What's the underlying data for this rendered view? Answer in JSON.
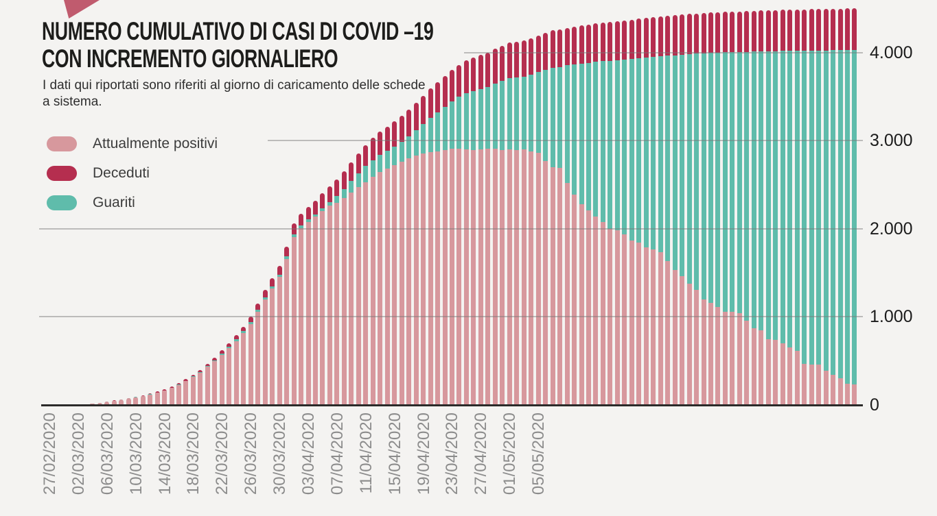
{
  "page": {
    "background": "#f4f3f1"
  },
  "logo": {
    "description": "red arrow fragment",
    "color": "#c05b6e"
  },
  "header": {
    "title_line1": "NUMERO CUMULATIVO DI CASI DI COVID –19",
    "title_line2": "CON INCREMENTO GIORNALIERO",
    "subtitle": "I dati qui riportati sono riferiti al giorno di caricamento delle schede a sistema."
  },
  "legend": [
    {
      "label": "Attualmente positivi",
      "color": "#d7989d"
    },
    {
      "label": "Deceduti",
      "color": "#b52e4f"
    },
    {
      "label": "Guariti",
      "color": "#5fbcab"
    }
  ],
  "chart_data": {
    "type": "bar",
    "stacked": true,
    "title": "NUMERO CUMULATIVO DI CASI DI COVID –19 CON INCREMENTO GIORNALIERO",
    "xlabel": "",
    "ylabel": "",
    "ylim": [
      0,
      4600
    ],
    "grid": true,
    "legend_position": "top-left",
    "bars_are_daily": true,
    "x_tick_every": 4,
    "x_tick_labels": [
      "27/02/2020",
      "02/03/2020",
      "06/03/2020",
      "10/03/2020",
      "14/03/2020",
      "18/03/2020",
      "22/03/2020",
      "26/03/2020",
      "30/03/2020",
      "03/04/2020",
      "07/04/2020",
      "11/04/2020",
      "15/04/2020",
      "19/04/2020",
      "23/04/2020",
      "27/04/2020",
      "01/05/2020",
      "05/05/2020"
    ],
    "y_ticks": [
      {
        "label": "4.000",
        "value": 4000
      },
      {
        "label": "3.000",
        "value": 3000
      },
      {
        "label": "2.000",
        "value": 2000
      },
      {
        "label": "1.000",
        "value": 1000
      },
      {
        "label": "0",
        "value": 0
      }
    ],
    "stack_order_bottom_to_top": [
      "Attualmente positivi",
      "Guariti",
      "Deceduti"
    ],
    "series": [
      {
        "name": "Attualmente positivi",
        "color": "#d7989d",
        "values": [
          2,
          3,
          4,
          6,
          8,
          10,
          14,
          23,
          37,
          49,
          62,
          75,
          89,
          102,
          120,
          140,
          164,
          191,
          225,
          269,
          318,
          369,
          433,
          497,
          571,
          644,
          725,
          816,
          915,
          1055,
          1200,
          1318,
          1455,
          1660,
          1905,
          2005,
          2075,
          2135,
          2200,
          2265,
          2290,
          2350,
          2410,
          2470,
          2530,
          2590,
          2640,
          2680,
          2720,
          2760,
          2800,
          2830,
          2850,
          2870,
          2880,
          2890,
          2905,
          2910,
          2900,
          2890,
          2900,
          2910,
          2905,
          2895,
          2900,
          2890,
          2900,
          2880,
          2865,
          2765,
          2695,
          2690,
          2520,
          2390,
          2275,
          2210,
          2135,
          2075,
          2000,
          1980,
          1940,
          1865,
          1840,
          1790,
          1765,
          1735,
          1635,
          1535,
          1460,
          1380,
          1305,
          1200,
          1160,
          1115,
          1060,
          1060,
          1045,
          960,
          870,
          845,
          750,
          735,
          700,
          655,
          615,
          470,
          460,
          460,
          385,
          345,
          305,
          240,
          230
        ]
      },
      {
        "name": "Guariti",
        "color": "#5fbcab",
        "values": [
          0,
          0,
          0,
          0,
          0,
          0,
          0,
          1,
          1,
          1,
          1,
          1,
          1,
          2,
          2,
          3,
          3,
          4,
          5,
          6,
          7,
          8,
          10,
          12,
          14,
          16,
          19,
          22,
          26,
          25,
          22,
          26,
          21,
          25,
          29,
          29,
          29,
          29,
          34,
          39,
          84,
          102,
          130,
          155,
          180,
          188,
          196,
          205,
          215,
          225,
          245,
          287,
          340,
          390,
          440,
          492,
          540,
          588,
          640,
          673,
          685,
          700,
          740,
          782,
          810,
          826,
          827,
          868,
          915,
          1036,
          1133,
          1145,
          1333,
          1475,
          1598,
          1673,
          1758,
          1826,
          1907,
          1933,
          1980,
          2062,
          2094,
          2151,
          2184,
          2221,
          2327,
          2434,
          2515,
          2601,
          2681,
          2791,
          2836,
          2884,
          2941,
          2942,
          2958,
          3046,
          3140,
          3168,
          3265,
          3281,
          3318,
          3364,
          3404,
          3551,
          3562,
          3563,
          3639,
          3681,
          3721,
          3788,
          3798
        ]
      },
      {
        "name": "Deceduti",
        "color": "#b52e4f",
        "values": [
          0,
          0,
          0,
          0,
          0,
          1,
          1,
          1,
          2,
          2,
          3,
          4,
          5,
          6,
          8,
          9,
          11,
          13,
          15,
          17,
          20,
          23,
          27,
          31,
          35,
          40,
          46,
          52,
          59,
          70,
          88,
          96,
          104,
          115,
          126,
          136,
          146,
          156,
          166,
          176,
          186,
          198,
          210,
          225,
          240,
          252,
          264,
          275,
          285,
          295,
          305,
          313,
          320,
          330,
          340,
          348,
          355,
          362,
          370,
          377,
          385,
          390,
          395,
          398,
          400,
          404,
          408,
          412,
          415,
          419,
          422,
          425,
          427,
          430,
          432,
          435,
          437,
          439,
          441,
          443,
          445,
          447,
          448,
          450,
          451,
          452,
          453,
          454,
          455,
          456,
          457,
          458,
          459,
          459,
          460,
          461,
          462,
          463,
          463,
          464,
          465,
          466,
          466,
          467,
          468,
          468,
          469,
          469,
          470,
          470,
          471,
          471,
          472
        ]
      }
    ]
  }
}
